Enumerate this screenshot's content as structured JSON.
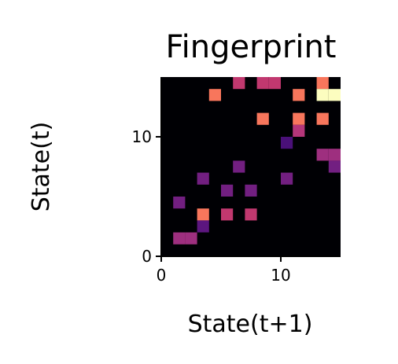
{
  "chart_data": {
    "type": "heatmap",
    "title": "Fingerprint",
    "xlabel": "State(t+1)",
    "ylabel": "State(t)",
    "xlim": [
      0,
      15
    ],
    "ylim": [
      0,
      15
    ],
    "xticks": [
      0,
      10
    ],
    "yticks": [
      0,
      10
    ],
    "colormap": "magma",
    "background_color": "#000004",
    "grid": false,
    "cells": [
      {
        "x": 6,
        "y": 14,
        "color": "#c1386f"
      },
      {
        "x": 8,
        "y": 14,
        "color": "#c1386f"
      },
      {
        "x": 9,
        "y": 14,
        "color": "#c1386f"
      },
      {
        "x": 13,
        "y": 14,
        "color": "#f8765c"
      },
      {
        "x": 4,
        "y": 13,
        "color": "#f8765c"
      },
      {
        "x": 11,
        "y": 13,
        "color": "#f8765c"
      },
      {
        "x": 13,
        "y": 13,
        "color": "#fcfdbf"
      },
      {
        "x": 14,
        "y": 13,
        "color": "#fcfdbf"
      },
      {
        "x": 8,
        "y": 11,
        "color": "#f8765c"
      },
      {
        "x": 11,
        "y": 11,
        "color": "#f8765c"
      },
      {
        "x": 13,
        "y": 11,
        "color": "#f8765c"
      },
      {
        "x": 11,
        "y": 10,
        "color": "#b5367a"
      },
      {
        "x": 10,
        "y": 9,
        "color": "#4a1079"
      },
      {
        "x": 13,
        "y": 8,
        "color": "#9e2f7f"
      },
      {
        "x": 14,
        "y": 8,
        "color": "#9e2f7f"
      },
      {
        "x": 6,
        "y": 7,
        "color": "#721f81"
      },
      {
        "x": 14,
        "y": 7,
        "color": "#721f81"
      },
      {
        "x": 3,
        "y": 6,
        "color": "#721f81"
      },
      {
        "x": 10,
        "y": 6,
        "color": "#721f81"
      },
      {
        "x": 5,
        "y": 5,
        "color": "#721f81"
      },
      {
        "x": 7,
        "y": 5,
        "color": "#721f81"
      },
      {
        "x": 1,
        "y": 4,
        "color": "#721f81"
      },
      {
        "x": 3,
        "y": 3,
        "color": "#f8765c"
      },
      {
        "x": 5,
        "y": 3,
        "color": "#c1386f"
      },
      {
        "x": 7,
        "y": 3,
        "color": "#c1386f"
      },
      {
        "x": 3,
        "y": 2,
        "color": "#5c167f"
      },
      {
        "x": 1,
        "y": 1,
        "color": "#9e2f7f"
      },
      {
        "x": 2,
        "y": 1,
        "color": "#9e2f7f"
      }
    ]
  }
}
